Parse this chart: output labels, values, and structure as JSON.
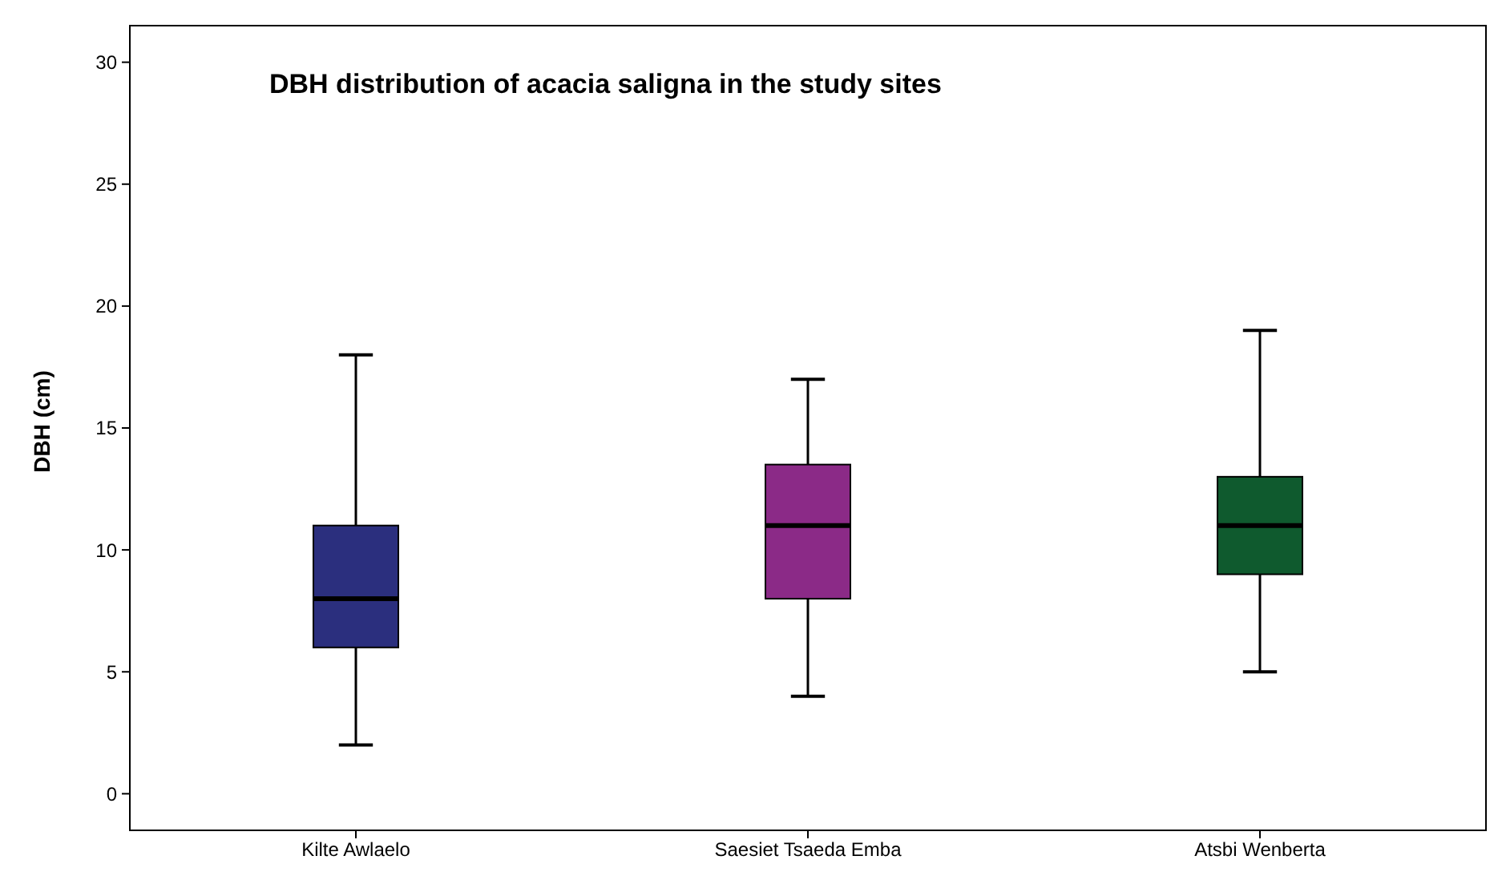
{
  "chart_data": {
    "type": "box",
    "title": "DBH distribution of acacia saligna in the study sites",
    "ylabel": "DBH (cm)",
    "categories": [
      "Kilte Awlaelo",
      "Saesiet Tsaeda Emba",
      "Atsbi Wenberta"
    ],
    "colors": [
      "#2b2f7e",
      "#8b2a87",
      "#0f5a2e"
    ],
    "boxes": [
      {
        "low": 2,
        "q1": 6,
        "median": 8,
        "q3": 11,
        "high": 18
      },
      {
        "low": 4,
        "q1": 8,
        "median": 11,
        "q3": 13.5,
        "high": 17
      },
      {
        "low": 5,
        "q1": 9,
        "median": 11,
        "q3": 13,
        "high": 19
      }
    ],
    "ylim": [
      -1.5,
      31.5
    ],
    "yticks": [
      0,
      5,
      10,
      15,
      20,
      25,
      30
    ],
    "grid": false
  }
}
